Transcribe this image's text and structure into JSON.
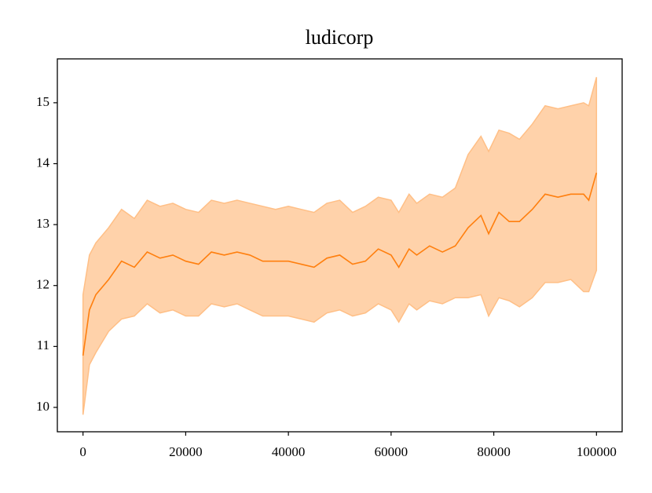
{
  "chart_data": {
    "type": "line",
    "title": "ludicorp",
    "x": [
      0,
      1250,
      2500,
      5000,
      7500,
      10000,
      12500,
      15000,
      17500,
      20000,
      22500,
      25000,
      27500,
      30000,
      32500,
      35000,
      37500,
      40000,
      42500,
      45000,
      47500,
      50000,
      52500,
      55000,
      57500,
      60000,
      61500,
      63500,
      65000,
      67500,
      70000,
      72500,
      75000,
      77500,
      79000,
      81000,
      83000,
      85000,
      87500,
      90000,
      92500,
      95000,
      97500,
      98500,
      100000
    ],
    "values": [
      10.85,
      11.6,
      11.85,
      12.1,
      12.4,
      12.3,
      12.55,
      12.45,
      12.5,
      12.4,
      12.35,
      12.55,
      12.5,
      12.55,
      12.5,
      12.4,
      12.4,
      12.4,
      12.35,
      12.3,
      12.45,
      12.5,
      12.35,
      12.4,
      12.6,
      12.5,
      12.3,
      12.6,
      12.5,
      12.65,
      12.55,
      12.65,
      12.95,
      13.15,
      12.85,
      13.2,
      13.05,
      13.05,
      13.25,
      13.5,
      13.45,
      13.5,
      13.5,
      13.4,
      13.85
    ],
    "upper": [
      11.85,
      12.5,
      12.7,
      12.95,
      13.25,
      13.1,
      13.4,
      13.3,
      13.35,
      13.25,
      13.2,
      13.4,
      13.35,
      13.4,
      13.35,
      13.3,
      13.25,
      13.3,
      13.25,
      13.2,
      13.35,
      13.4,
      13.2,
      13.3,
      13.45,
      13.4,
      13.2,
      13.5,
      13.35,
      13.5,
      13.45,
      13.6,
      14.15,
      14.45,
      14.2,
      14.55,
      14.5,
      14.4,
      14.65,
      14.95,
      14.9,
      14.95,
      15.0,
      14.95,
      15.42
    ],
    "lower": [
      9.88,
      10.7,
      10.9,
      11.25,
      11.45,
      11.5,
      11.7,
      11.55,
      11.6,
      11.5,
      11.5,
      11.7,
      11.65,
      11.7,
      11.6,
      11.5,
      11.5,
      11.5,
      11.45,
      11.4,
      11.55,
      11.6,
      11.5,
      11.55,
      11.7,
      11.6,
      11.4,
      11.7,
      11.6,
      11.75,
      11.7,
      11.8,
      11.8,
      11.85,
      11.5,
      11.8,
      11.75,
      11.65,
      11.8,
      12.05,
      12.05,
      12.1,
      11.9,
      11.9,
      12.25
    ],
    "color": "#ff7f0e",
    "band_color": "#ffbf86",
    "xlim": [
      -5000,
      105000
    ],
    "ylim": [
      9.6,
      15.72
    ],
    "xticks": [
      0,
      20000,
      40000,
      60000,
      80000,
      100000
    ],
    "yticks": [
      10,
      11,
      12,
      13,
      14,
      15
    ]
  }
}
